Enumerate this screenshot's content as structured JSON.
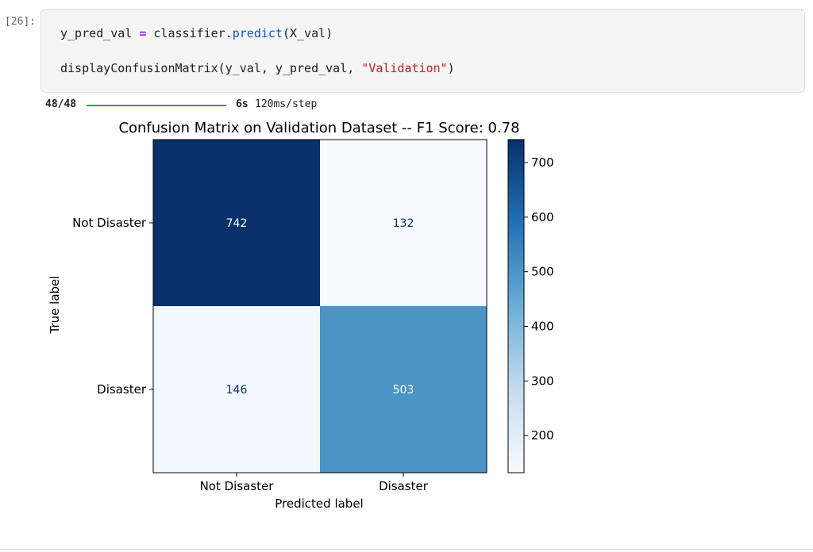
{
  "cell": {
    "prompt": "[26]:",
    "code_line1": {
      "var": "y_pred_val ",
      "op": "=",
      "obj": " classifier.",
      "fn": "predict",
      "args": "(X_val)"
    },
    "code_line2": {
      "fn": "displayConfusionMatrix(y_val, y_pred_val, ",
      "str": "\"Validation\"",
      "close": ")"
    }
  },
  "output": {
    "progress": {
      "count": "48/48",
      "fraction": 1.0,
      "time": "6s",
      "rate": "120ms/step"
    }
  },
  "chart_data": {
    "type": "heatmap",
    "title": "Confusion Matrix on Validation Dataset -- F1 Score: 0.78",
    "xlabel": "Predicted label",
    "ylabel": "True label",
    "x_categories": [
      "Not Disaster",
      "Disaster"
    ],
    "y_categories": [
      "Not Disaster",
      "Disaster"
    ],
    "values": [
      [
        742,
        132
      ],
      [
        146,
        503
      ]
    ],
    "colormap": "Blues",
    "colorbar": {
      "range": [
        132,
        742
      ],
      "ticks": [
        200,
        300,
        400,
        500,
        600,
        700
      ],
      "tick_labels": [
        "200",
        "300",
        "400",
        "500",
        "600",
        "700"
      ]
    }
  }
}
